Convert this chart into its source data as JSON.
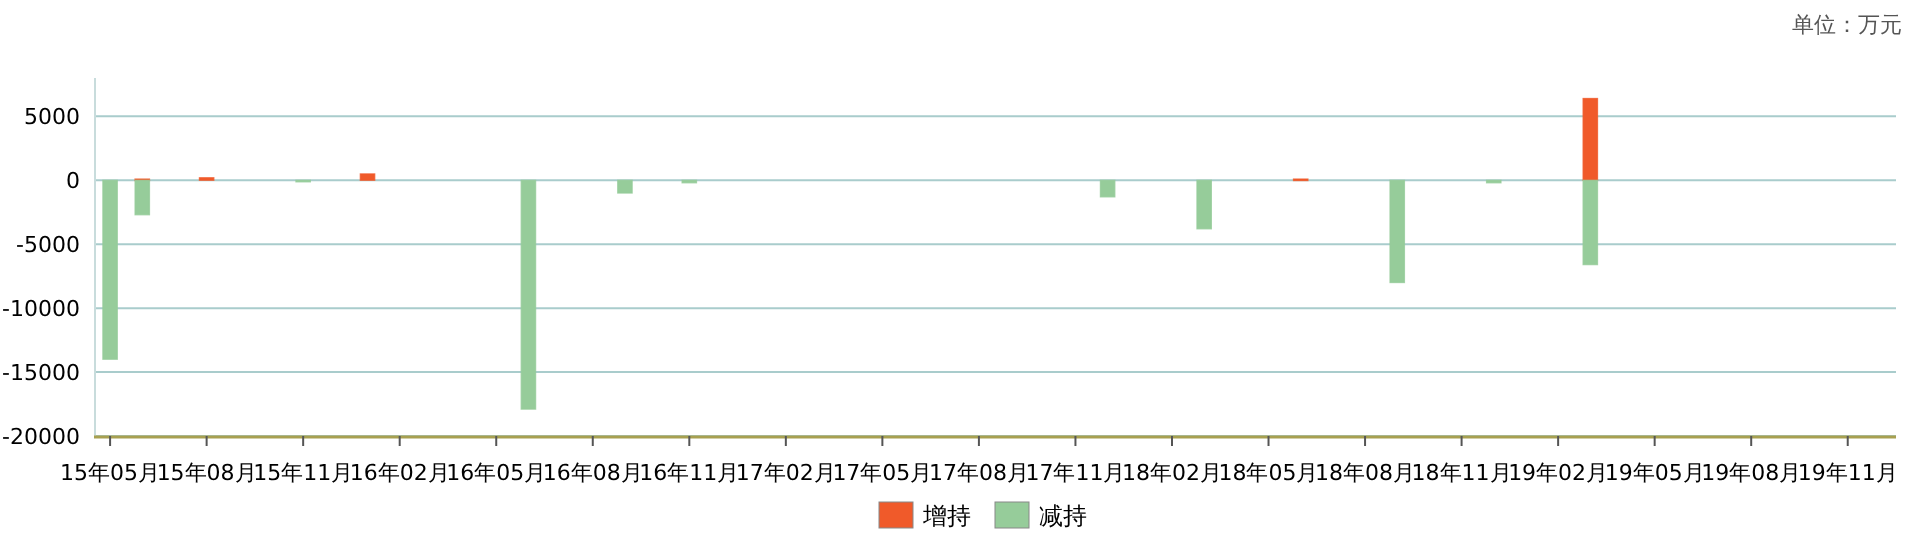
{
  "chart_data": {
    "type": "bar",
    "stacked": true,
    "legend": "bottom",
    "grid": "y",
    "annotations": [
      "单位：万元"
    ],
    "categories": [
      "15年05月",
      null,
      null,
      "15年08月",
      null,
      null,
      "15年11月",
      null,
      null,
      "16年02月",
      null,
      null,
      "16年05月",
      null,
      null,
      "16年08月",
      null,
      null,
      "16年11月",
      null,
      null,
      "17年02月",
      null,
      null,
      "17年05月",
      null,
      null,
      "17年08月",
      null,
      null,
      "17年11月",
      null,
      null,
      "18年02月",
      null,
      null,
      "18年05月",
      null,
      null,
      "18年08月",
      null,
      null,
      "18年11月",
      null,
      null,
      "19年02月",
      null,
      null,
      "19年05月",
      null,
      null,
      "19年08月",
      null,
      null,
      "19年11月",
      null
    ],
    "ylim": [
      -20000,
      8000
    ],
    "yticks": [
      -20000,
      -15000,
      -10000,
      -5000,
      0,
      5000
    ],
    "series": [
      {
        "name": "增持",
        "color": "#f05a2a",
        "values": [
          null,
          100,
          null,
          200,
          null,
          null,
          null,
          null,
          500,
          null,
          null,
          null,
          null,
          null,
          null,
          null,
          null,
          null,
          null,
          null,
          null,
          null,
          null,
          null,
          null,
          null,
          null,
          null,
          null,
          null,
          null,
          null,
          null,
          null,
          null,
          null,
          null,
          100,
          null,
          null,
          null,
          null,
          null,
          null,
          null,
          null,
          6400,
          null,
          null,
          null,
          null,
          null,
          null,
          null,
          null,
          null
        ]
      },
      {
        "name": "减持",
        "color": "#96cc9a",
        "values": [
          -14000,
          -2700,
          null,
          null,
          null,
          null,
          -100,
          null,
          null,
          null,
          null,
          null,
          null,
          -17900,
          null,
          null,
          -1000,
          null,
          -200,
          null,
          null,
          null,
          null,
          null,
          null,
          null,
          null,
          null,
          null,
          null,
          null,
          -1300,
          null,
          null,
          -3800,
          null,
          null,
          null,
          null,
          null,
          -8000,
          null,
          null,
          -200,
          null,
          null,
          -6600,
          null,
          null,
          null,
          null,
          null,
          null,
          null,
          null,
          null
        ]
      }
    ]
  }
}
